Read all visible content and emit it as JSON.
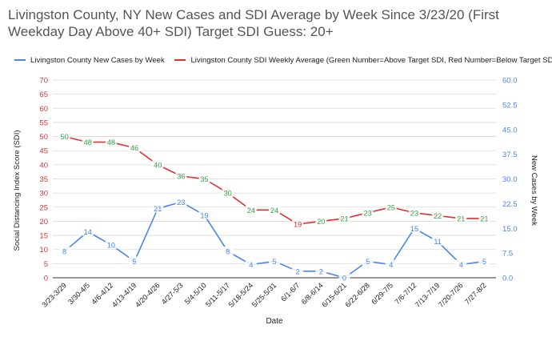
{
  "title": "Livingston County, NY New Cases and SDI Average by Week Since 3/23/20 (First Weekday Day Above 40+ SDI) Target SDI Guess: 20+",
  "legend": [
    {
      "label": "Livingston County New Cases by Week",
      "color": "#4a86e8"
    },
    {
      "label": "Livingston County SDI Weekly Average (Green Number=Above Target SDI, Red Number=Below Target SDI)",
      "color": "#e03131"
    }
  ],
  "colors": {
    "sdi_line": "#e03131",
    "cases_line": "#4a86e8",
    "above_target": "#34a853",
    "below_target": "#e03131",
    "grid": "#d9d9d9",
    "left_axis": "#e03131",
    "right_axis": "#4a86e8"
  },
  "chart_data": {
    "type": "line",
    "title": "Livingston County, NY New Cases and SDI Average by Week Since 3/23/20 (First Weekday Day Above 40+ SDI) Target SDI Guess: 20+",
    "xlabel": "Date",
    "ylabel_left": "Social Distancing Index Score (SDI)",
    "ylabel_right": "New Cases by Week",
    "categories": [
      "3/23-3/29",
      "3/30-4/5",
      "4/6-4/12",
      "4/13-4/19",
      "4/20-4/26",
      "4/27-5/3",
      "5/4-5/10",
      "5/11-5/17",
      "5/18-5/24",
      "5/25-5/31",
      "6/1-6/7",
      "6/8-6/14",
      "6/15-6/21",
      "6/22-6/28",
      "6/29-7/5",
      "7/6-7/12",
      "7/13-7/19",
      "7/20-7/26",
      "7/27-8/2"
    ],
    "y_left_ticks": [
      "0",
      "5",
      "10",
      "15",
      "20",
      "25",
      "30",
      "35",
      "40",
      "45",
      "50",
      "55",
      "60",
      "65",
      "70"
    ],
    "y_right_ticks": [
      "0.0",
      "7.5",
      "15.0",
      "22.5",
      "30.0",
      "37.5",
      "45.0",
      "52.5",
      "60.0"
    ],
    "ylim_left": [
      0,
      70
    ],
    "ylim_right": [
      0,
      60
    ],
    "target_sdi": 20,
    "series": [
      {
        "name": "Livingston County New Cases by Week",
        "axis": "right",
        "values": [
          8,
          14,
          10,
          5,
          21,
          23,
          19,
          8,
          4,
          5,
          2,
          2,
          0,
          5,
          4,
          15,
          11,
          4,
          5
        ]
      },
      {
        "name": "Livingston County SDI Weekly Average (Green Number=Above Target SDI, Red Number=Below Target SDI)",
        "axis": "left",
        "values": [
          50,
          48,
          48,
          46,
          40,
          36,
          35,
          30,
          24,
          24,
          19,
          20,
          21,
          23,
          25,
          23,
          22,
          21,
          21
        ]
      }
    ],
    "grid": true,
    "legend_position": "top-left"
  }
}
